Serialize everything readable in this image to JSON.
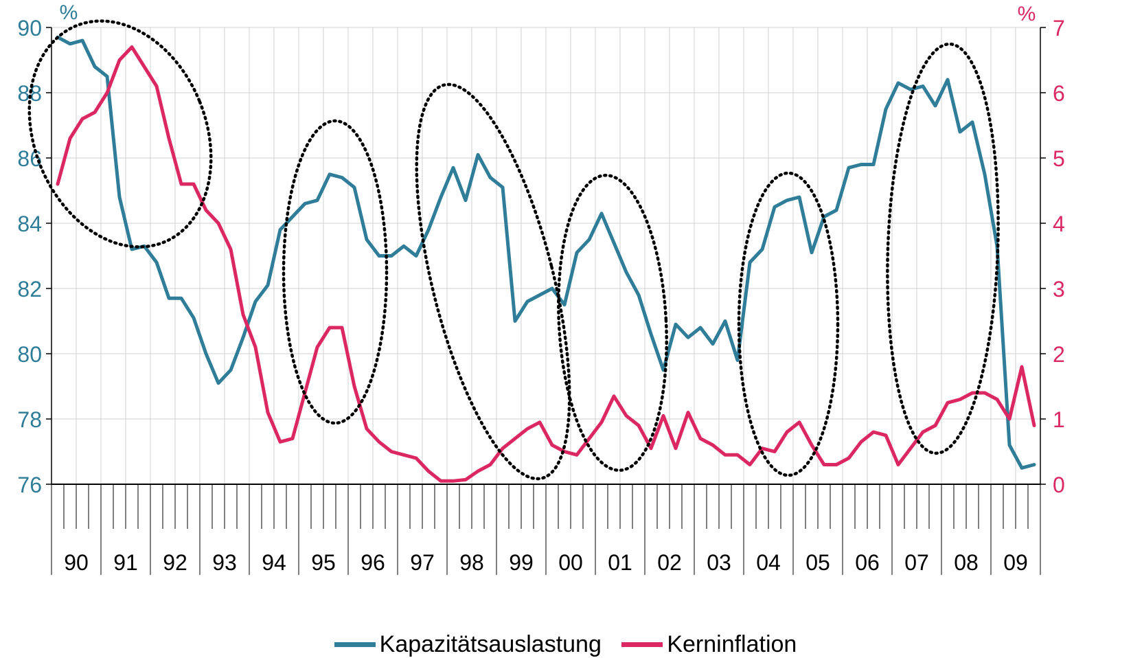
{
  "chart_data": {
    "type": "line",
    "y_left": {
      "unit": "%",
      "min": 76,
      "max": 90,
      "ticks": [
        76,
        78,
        80,
        82,
        84,
        86,
        88,
        90
      ]
    },
    "y_right": {
      "unit": "%",
      "min": 0,
      "max": 7,
      "ticks": [
        0,
        1,
        2,
        3,
        4,
        5,
        6,
        7
      ]
    },
    "years": [
      "90",
      "91",
      "92",
      "93",
      "94",
      "95",
      "96",
      "97",
      "98",
      "99",
      "00",
      "01",
      "02",
      "03",
      "04",
      "05",
      "06",
      "07",
      "08",
      "09"
    ],
    "x_range": [
      1990,
      2010
    ],
    "grid": true,
    "legend_position": "bottom",
    "colors": {
      "Kapazitätsauslastung": "#2f7d98",
      "Kerninflation": "#db2862"
    },
    "series": [
      {
        "name": "Kapazitätsauslastung",
        "axis": "left",
        "start": 1990.0,
        "step": 0.25,
        "values": [
          89.7,
          89.5,
          89.6,
          88.8,
          88.5,
          84.8,
          83.2,
          83.3,
          82.8,
          81.7,
          81.7,
          81.1,
          80.0,
          79.1,
          79.5,
          80.5,
          81.6,
          82.1,
          83.8,
          84.2,
          84.6,
          84.7,
          85.5,
          85.4,
          85.1,
          83.5,
          83.0,
          83.0,
          83.3,
          83.0,
          83.8,
          84.8,
          85.7,
          84.7,
          86.1,
          85.4,
          85.1,
          81.0,
          81.6,
          81.8,
          82.0,
          81.5,
          83.1,
          83.5,
          84.3,
          83.4,
          82.5,
          81.8,
          80.6,
          79.5,
          80.9,
          80.5,
          80.8,
          80.3,
          81.0,
          79.8,
          82.8,
          83.2,
          84.5,
          84.7,
          84.8,
          83.1,
          84.2,
          84.4,
          85.7,
          85.8,
          85.8,
          87.5,
          88.3,
          88.1,
          88.2,
          87.6,
          88.4,
          86.8,
          87.1,
          85.5,
          83.3,
          77.2,
          76.5,
          76.6
        ]
      },
      {
        "name": "Kerninflation",
        "axis": "right",
        "start": 1990.0,
        "step": 0.25,
        "values": [
          4.6,
          5.3,
          5.6,
          5.7,
          6.0,
          6.5,
          6.7,
          6.4,
          6.1,
          5.3,
          4.6,
          4.6,
          4.2,
          4.0,
          3.6,
          2.6,
          2.1,
          1.1,
          0.65,
          0.7,
          1.4,
          2.1,
          2.4,
          2.4,
          1.5,
          0.85,
          0.65,
          0.5,
          0.45,
          0.4,
          0.2,
          0.05,
          0.05,
          0.07,
          0.2,
          0.3,
          0.55,
          0.7,
          0.85,
          0.95,
          0.6,
          0.5,
          0.45,
          0.7,
          0.95,
          1.35,
          1.05,
          0.9,
          0.55,
          1.05,
          0.55,
          1.1,
          0.7,
          0.6,
          0.45,
          0.45,
          0.3,
          0.55,
          0.5,
          0.8,
          0.95,
          0.6,
          0.3,
          0.3,
          0.4,
          0.65,
          0.8,
          0.75,
          0.3,
          0.55,
          0.8,
          0.9,
          1.25,
          1.3,
          1.4,
          1.4,
          1.3,
          1.0,
          1.8,
          0.9
        ]
      }
    ],
    "annotations": "dotted ellipses highlighting cycles"
  }
}
